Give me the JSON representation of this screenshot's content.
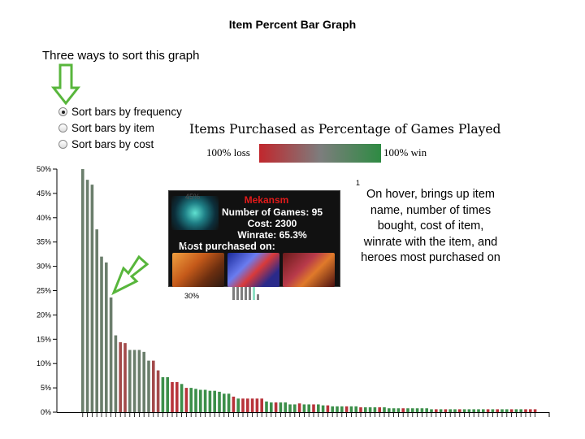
{
  "slide": {
    "title": "Item Percent Bar Graph",
    "intro": "Three ways to sort this graph",
    "hover_note": "On hover, brings up item name, number of times bought, cost of item, winrate with the item, and heroes most purchased on",
    "footnote_mark": "1"
  },
  "controls": {
    "sort_options": [
      {
        "label": "Sort bars by frequency",
        "selected": true
      },
      {
        "label": "Sort bars by item",
        "selected": false
      },
      {
        "label": "Sort bars by cost",
        "selected": false
      }
    ]
  },
  "legend": {
    "loss_label": "100% loss",
    "win_label": "100% win",
    "colors": {
      "loss": "#c1272d",
      "neutral": "#7d7d7d",
      "win": "#2e8b43"
    }
  },
  "tooltip": {
    "item_name": "Mekansm",
    "games": "Number of Games: 95",
    "cost": "Cost: 2300",
    "winrate": "Winrate: 65.3%",
    "most_purchased_label": "Most purchased on:",
    "hero_icons": [
      "hero-portrait-1",
      "hero-portrait-2",
      "hero-portrait-3"
    ],
    "underlying_axis_label": "30%",
    "underlying_axis_label_40": "40",
    "underlying_axis_label_45": "45%",
    "icon": "mekansm-item-icon"
  },
  "annotation": {
    "arrow_color": "#58b63c"
  },
  "chart_data": {
    "type": "bar",
    "title": "Items Purchased as Percentage of Games Played",
    "ylabel": "",
    "xlabel": "",
    "ylim": [
      0,
      50
    ],
    "yticks": [
      "0%",
      "5%",
      "10%",
      "15%",
      "20%",
      "25%",
      "30%",
      "35%",
      "40%",
      "45%",
      "50%"
    ],
    "values": [
      50,
      47.8,
      46.8,
      37.6,
      32,
      30.8,
      23.6,
      15.8,
      14.4,
      14.2,
      12.8,
      12.8,
      12.8,
      12.4,
      10.6,
      10.6,
      8.6,
      7.2,
      7.2,
      6.2,
      6.2,
      5.8,
      5.0,
      5.0,
      4.8,
      4.6,
      4.6,
      4.4,
      4.4,
      4.2,
      3.8,
      3.8,
      3.2,
      2.8,
      2.8,
      2.8,
      2.8,
      2.8,
      2.8,
      2.2,
      2.0,
      2.0,
      2.0,
      2.0,
      1.6,
      1.6,
      1.8,
      1.6,
      1.6,
      1.6,
      1.6,
      1.4,
      1.4,
      1.2,
      1.2,
      1.2,
      1.2,
      1.2,
      1.2,
      1.0,
      1.0,
      1.0,
      1.0,
      1.0,
      1.0,
      0.8,
      0.8,
      0.8,
      0.8,
      0.8,
      0.8,
      0.8,
      0.8,
      0.8,
      0.6,
      0.6,
      0.6,
      0.6,
      0.6,
      0.6,
      0.6,
      0.6,
      0.6,
      0.6,
      0.6,
      0.6,
      0.6,
      0.6,
      0.6,
      0.6,
      0.6,
      0.6,
      0.6,
      0.6,
      0.6,
      0.6,
      0.6
    ],
    "winrate_colors": [
      "g",
      "g",
      "g",
      "g",
      "g",
      "g",
      "g",
      "g",
      "r",
      "r",
      "g",
      "g",
      "g",
      "g",
      "g",
      "r",
      "r",
      "g",
      "g",
      "r",
      "r",
      "g",
      "r",
      "g",
      "g",
      "g",
      "g",
      "g",
      "g",
      "g",
      "g",
      "g",
      "r",
      "g",
      "r",
      "r",
      "r",
      "r",
      "r",
      "g",
      "g",
      "r",
      "g",
      "g",
      "g",
      "g",
      "r",
      "g",
      "g",
      "r",
      "g",
      "g",
      "r",
      "g",
      "g",
      "g",
      "r",
      "g",
      "g",
      "r",
      "g",
      "g",
      "g",
      "r",
      "g",
      "g",
      "g",
      "g",
      "r",
      "g",
      "g",
      "g",
      "g",
      "g",
      "g",
      "r",
      "g",
      "r",
      "g",
      "g",
      "r",
      "g",
      "g",
      "g",
      "g",
      "g",
      "r",
      "g",
      "r",
      "g",
      "g",
      "r",
      "g",
      "g",
      "r",
      "r",
      "r"
    ],
    "bar_color_map": {
      "g": "#6b7e6c",
      "r": "#a34a4a"
    },
    "bar_color_map_alt": {
      "g": "#3c8f4a",
      "r": "#b8333a"
    }
  }
}
